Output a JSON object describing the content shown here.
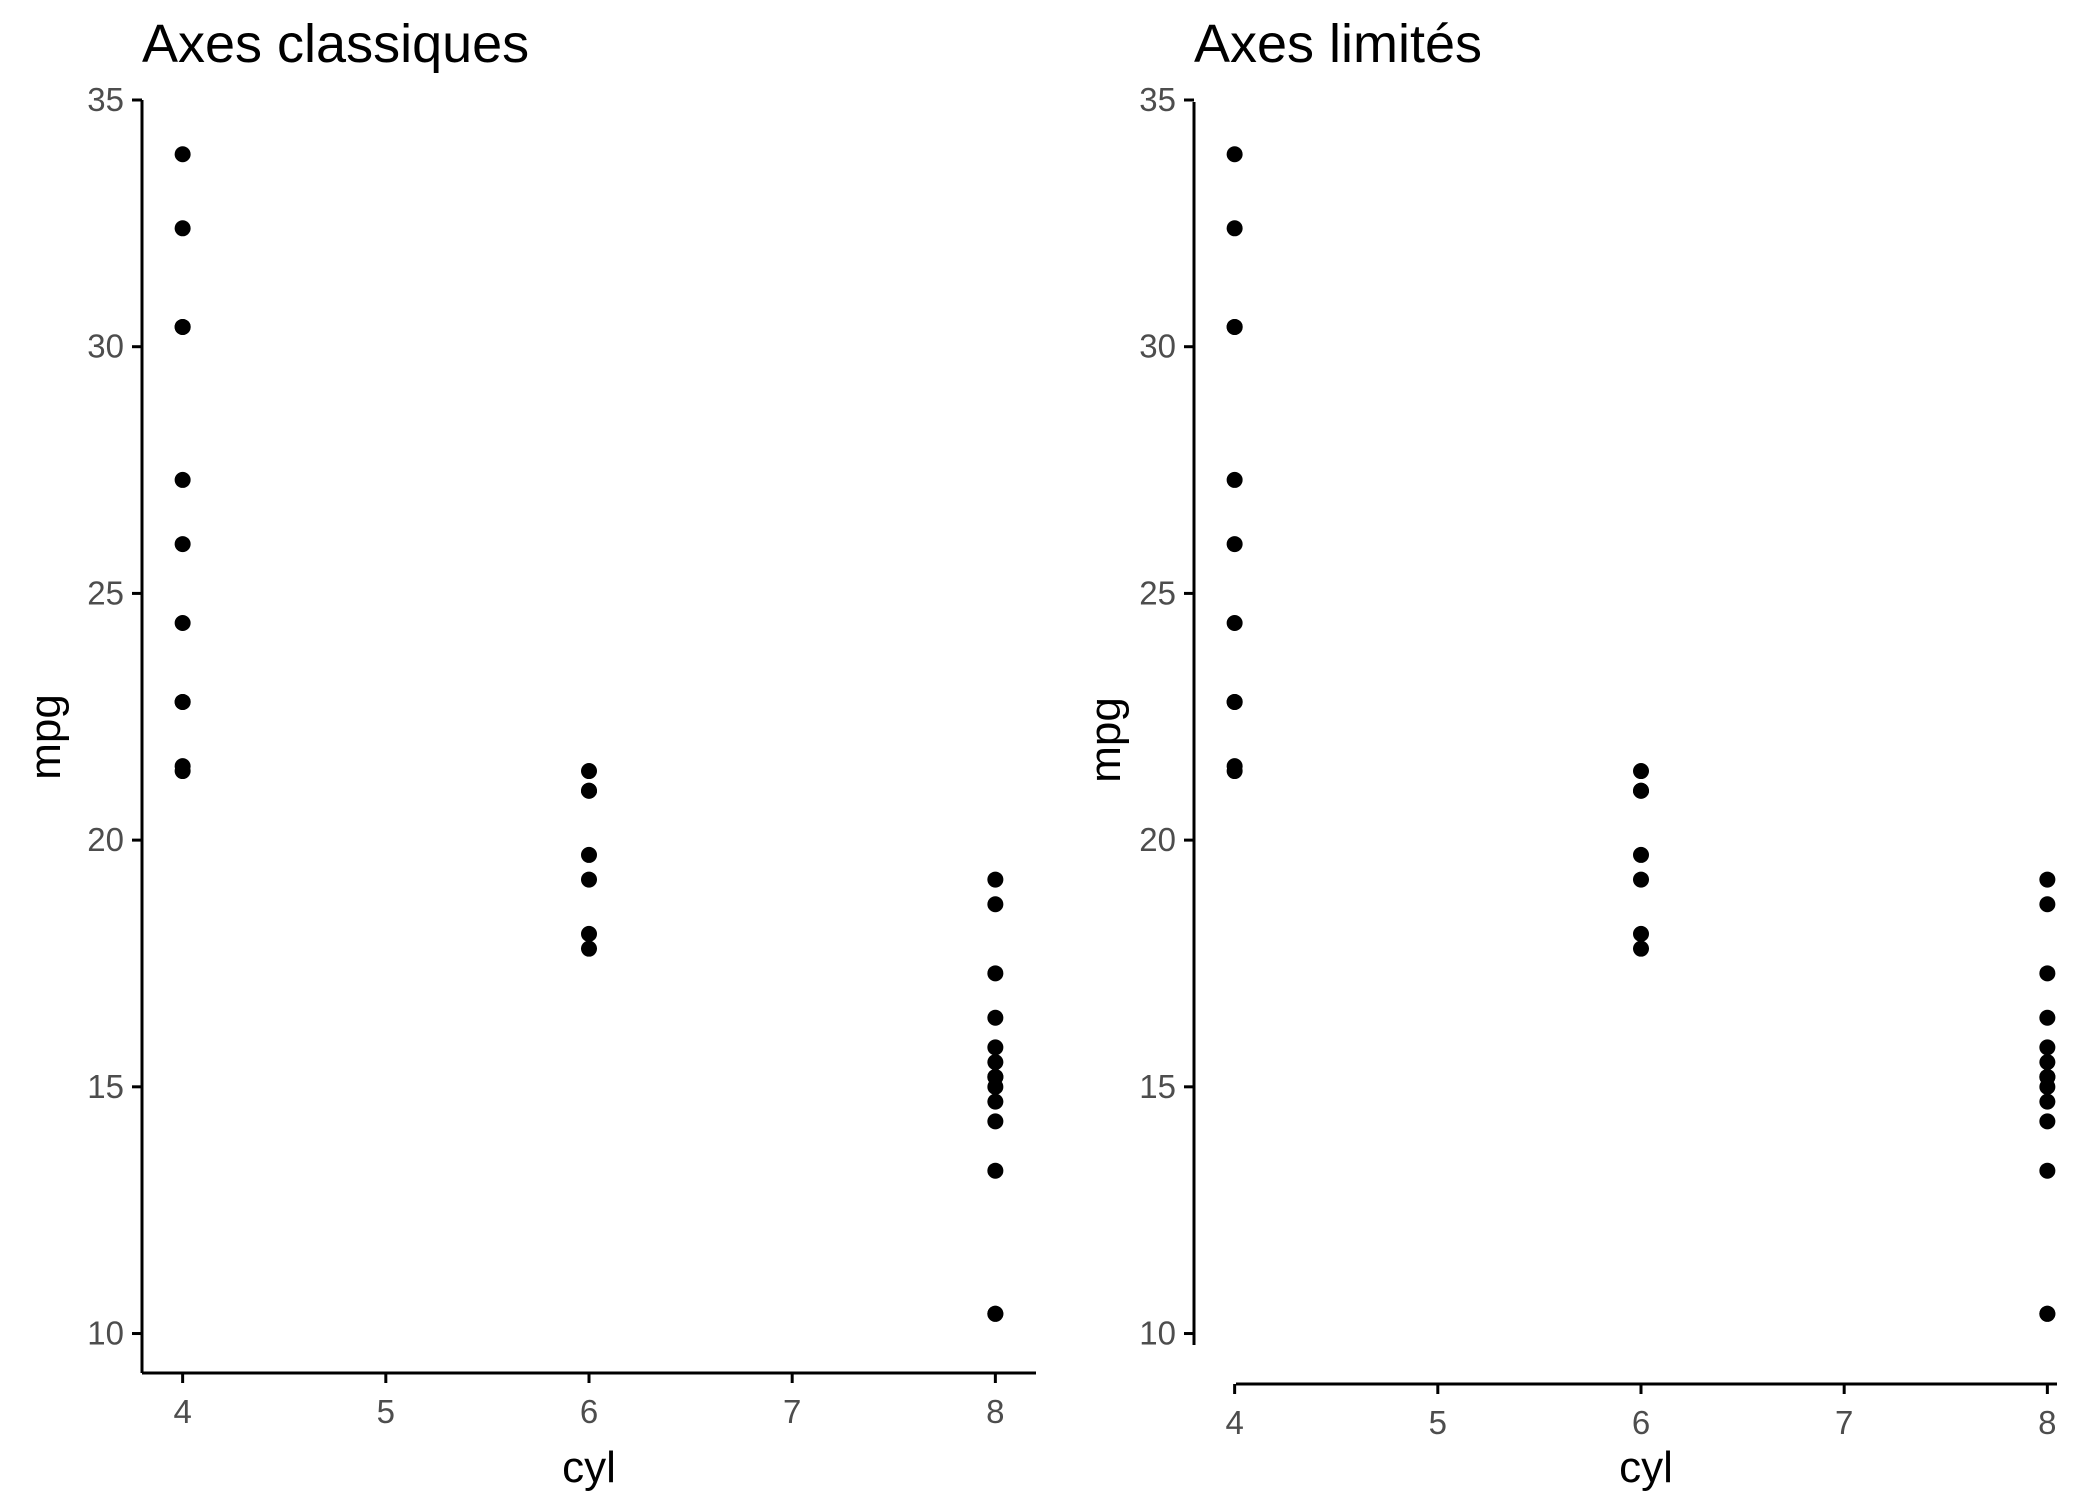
{
  "chart_data": [
    {
      "type": "scatter",
      "title": "Axes classiques",
      "xlabel": "cyl",
      "ylabel": "mpg",
      "xlim": [
        3.8,
        8.2
      ],
      "ylim": [
        9.2,
        35
      ],
      "x_ticks": [
        "4",
        "5",
        "6",
        "7",
        "8"
      ],
      "y_ticks": [
        "10",
        "15",
        "20",
        "25",
        "30",
        "35"
      ],
      "grid": false,
      "x": [
        6,
        6,
        4,
        6,
        8,
        6,
        8,
        4,
        4,
        6,
        6,
        8,
        8,
        8,
        8,
        8,
        8,
        4,
        4,
        4,
        4,
        8,
        8,
        8,
        8,
        4,
        4,
        4,
        8,
        6,
        8,
        4
      ],
      "y": [
        21,
        21,
        22.8,
        21.4,
        18.7,
        18.1,
        14.3,
        24.4,
        22.8,
        19.2,
        17.8,
        16.4,
        17.3,
        15.2,
        10.4,
        10.4,
        14.7,
        32.4,
        30.4,
        33.9,
        21.5,
        15.5,
        15.2,
        13.3,
        19.2,
        27.3,
        26,
        30.4,
        15.8,
        19.7,
        15,
        21.4
      ]
    },
    {
      "type": "scatter",
      "title": "Axes limités",
      "xlabel": "cyl",
      "ylabel": "mpg",
      "xlim": [
        3.8,
        8.2
      ],
      "ylim": [
        9.2,
        35
      ],
      "x_ticks": [
        "4",
        "5",
        "6",
        "7",
        "8"
      ],
      "y_ticks": [
        "10",
        "15",
        "20",
        "25",
        "30",
        "35"
      ],
      "grid": false,
      "x": [
        6,
        6,
        4,
        6,
        8,
        6,
        8,
        4,
        4,
        6,
        6,
        8,
        8,
        8,
        8,
        8,
        8,
        4,
        4,
        4,
        4,
        8,
        8,
        8,
        8,
        4,
        4,
        4,
        8,
        6,
        8,
        4
      ],
      "y": [
        21,
        21,
        22.8,
        21.4,
        18.7,
        18.1,
        14.3,
        24.4,
        22.8,
        19.2,
        17.8,
        16.4,
        17.3,
        15.2,
        10.4,
        10.4,
        14.7,
        32.4,
        30.4,
        33.9,
        21.5,
        15.5,
        15.2,
        13.3,
        19.2,
        27.3,
        26,
        30.4,
        15.8,
        19.7,
        15,
        21.4
      ]
    }
  ]
}
